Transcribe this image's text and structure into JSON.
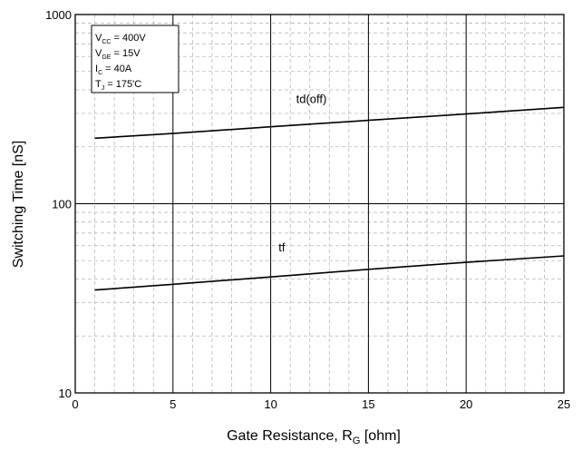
{
  "chart_data": {
    "type": "line",
    "xlabel": "Gate Resistance, R",
    "xlabel_sub": "G",
    "xlabel_unit": " [ohm]",
    "ylabel": "Switching Time [nS]",
    "xlim": [
      0,
      25
    ],
    "ylim": [
      10,
      1000
    ],
    "y_scale": "log",
    "x_ticks": [
      0,
      5,
      10,
      15,
      20,
      25
    ],
    "x_tick_labels": [
      "0",
      "5",
      "10",
      "15",
      "20",
      "25"
    ],
    "y_ticks": [
      10,
      100,
      1000
    ],
    "y_tick_labels": [
      "10",
      "100",
      "1000"
    ],
    "grid": true,
    "conditions": [
      {
        "main": "V",
        "sub": "CC",
        "rest": " = 400V"
      },
      {
        "main": "V",
        "sub": "GE",
        "rest": " = 15V"
      },
      {
        "main": "I",
        "sub": "C",
        "rest": " = 40A"
      },
      {
        "main": "T",
        "sub": "J",
        "rest": " = 175'C"
      }
    ],
    "series": [
      {
        "name": "td(off)",
        "x": [
          1,
          5,
          10,
          15,
          20,
          25
        ],
        "y": [
          222,
          235,
          255,
          276,
          298,
          323
        ]
      },
      {
        "name": "tf",
        "x": [
          1,
          5,
          10,
          15,
          20,
          25
        ],
        "y": [
          35,
          37.5,
          41,
          45,
          49,
          53
        ]
      }
    ]
  }
}
